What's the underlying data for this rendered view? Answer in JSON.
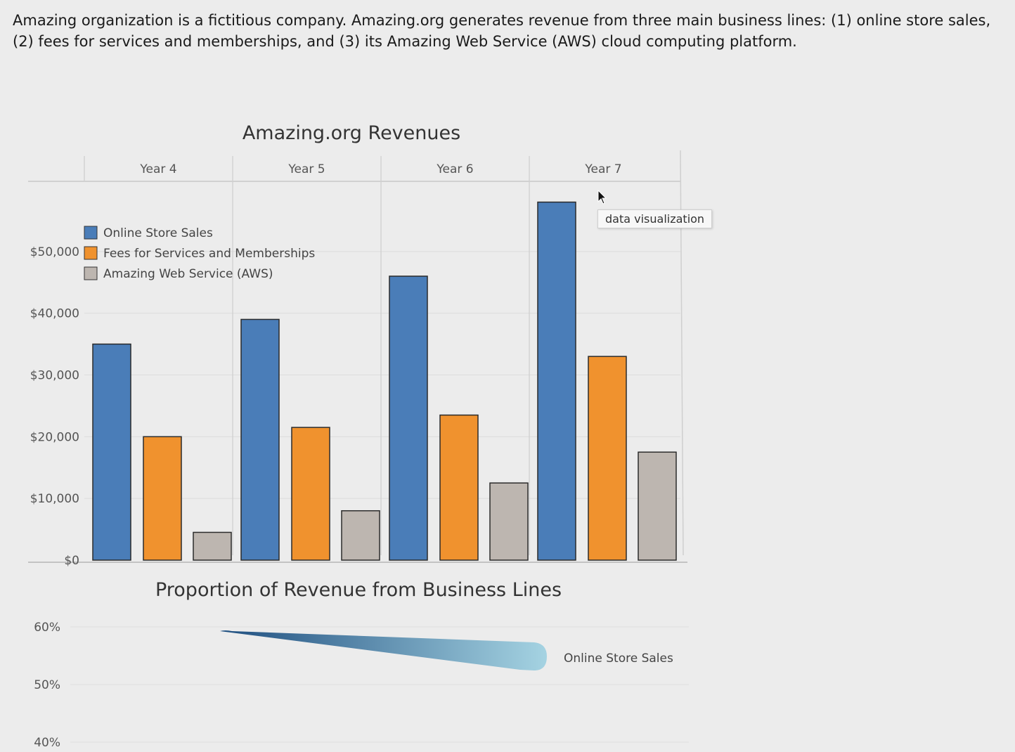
{
  "intro_text": "Amazing organization is a fictitious company. Amazing.org generates revenue from three main business lines: (1) online store sales, (2) fees for services and memberships, and (3) its Amazing Web Service (AWS) cloud computing platform.",
  "tooltip": "data visualization",
  "colors": {
    "online": "#4a7db8",
    "fees": "#f0922e",
    "aws": "#bdb6b0"
  },
  "chart_data": [
    {
      "type": "bar",
      "title": "Amazing.org Revenues",
      "categories": [
        "Year 4",
        "Year 5",
        "Year 6",
        "Year 7"
      ],
      "series": [
        {
          "name": "Online Store Sales",
          "values": [
            35000,
            39000,
            46000,
            58000
          ]
        },
        {
          "name": "Fees for Services and Memberships",
          "values": [
            20000,
            21500,
            23500,
            33000
          ]
        },
        {
          "name": "Amazing Web Service (AWS)",
          "values": [
            4500,
            8000,
            12500,
            17500
          ]
        }
      ],
      "ylim": [
        0,
        60000
      ],
      "yticks": [
        "$0",
        "$10,000",
        "$20,000",
        "$30,000",
        "$40,000",
        "$50,000"
      ],
      "ytick_values": [
        0,
        10000,
        20000,
        30000,
        40000,
        50000
      ],
      "legend_placement": "top-left",
      "grid": true
    },
    {
      "type": "line",
      "title": "Proportion of Revenue from Business Lines",
      "yticks": [
        "60%",
        "50%",
        "40%"
      ],
      "ytick_values": [
        60,
        50,
        40
      ],
      "series": [
        {
          "name": "Online Store Sales",
          "values": [
            58,
            55,
            52
          ]
        }
      ]
    }
  ]
}
